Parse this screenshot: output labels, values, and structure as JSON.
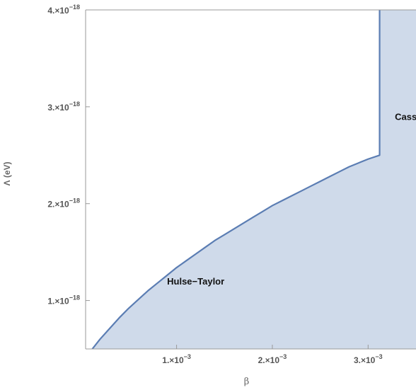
{
  "chart_data": {
    "type": "area",
    "xlabel": "β",
    "ylabel": "Λ (eV)",
    "xlim": [
      5e-05,
      0.0035
    ],
    "ylim": [
      5e-19,
      4e-18
    ],
    "x_ticks": [
      {
        "mantissa": "1.×10",
        "exp": "−3",
        "value": 0.001
      },
      {
        "mantissa": "2.×10",
        "exp": "−3",
        "value": 0.002
      },
      {
        "mantissa": "3.×10",
        "exp": "−3",
        "value": 0.003
      }
    ],
    "y_ticks": [
      {
        "mantissa": "1.×10",
        "exp": "−18",
        "value": 1e-18
      },
      {
        "mantissa": "2.×10",
        "exp": "−18",
        "value": 2e-18
      },
      {
        "mantissa": "3.×10",
        "exp": "−18",
        "value": 3e-18
      },
      {
        "mantissa": "4.×10",
        "exp": "−18",
        "value": 4e-18
      }
    ],
    "boundary": {
      "x": [
        0.00012,
        0.0002,
        0.0003,
        0.0004,
        0.0005,
        0.0006,
        0.0007,
        0.0008,
        0.0009,
        0.001,
        0.0011,
        0.0012,
        0.0013,
        0.0014,
        0.0015,
        0.0016,
        0.0017,
        0.0018,
        0.0019,
        0.002,
        0.0021,
        0.0022,
        0.0023,
        0.0024,
        0.0025,
        0.0026,
        0.0027,
        0.0028,
        0.0029,
        0.003,
        0.00312,
        0.00312
      ],
      "y": [
        5e-19,
        6e-19,
        7.1e-19,
        8.2e-19,
        9.2e-19,
        1.01e-18,
        1.1e-18,
        1.18e-18,
        1.26e-18,
        1.34e-18,
        1.41e-18,
        1.48e-18,
        1.55e-18,
        1.62e-18,
        1.68e-18,
        1.74e-18,
        1.8e-18,
        1.86e-18,
        1.92e-18,
        1.98e-18,
        2.03e-18,
        2.08e-18,
        2.13e-18,
        2.18e-18,
        2.23e-18,
        2.28e-18,
        2.33e-18,
        2.38e-18,
        2.42e-18,
        2.46e-18,
        2.5e-18,
        4e-18
      ]
    },
    "fill_color": "#cfdaea",
    "line_color": "#5b7db3",
    "annotations": [
      {
        "text": "Hulse−Taylor",
        "x": 0.0012,
        "y": 1.2e-18
      },
      {
        "text": "Cassini",
        "x": 0.00345,
        "y": 2.9e-18
      }
    ],
    "grid": false,
    "legend": "none"
  }
}
